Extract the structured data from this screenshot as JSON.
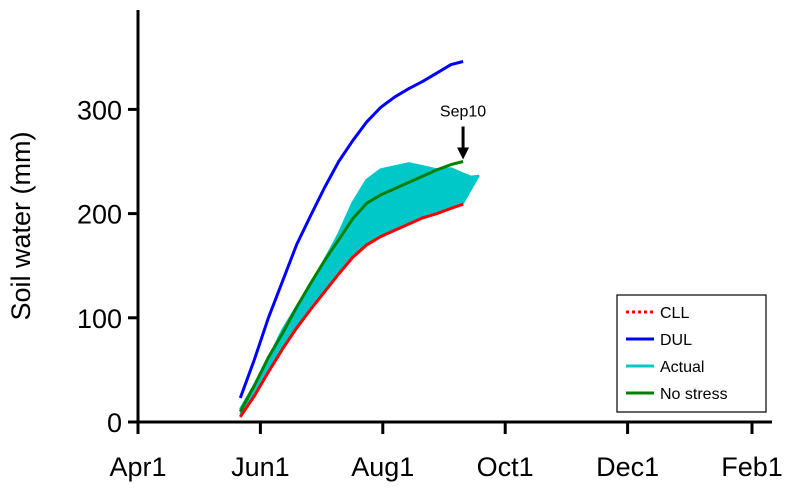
{
  "chart_data": {
    "type": "line",
    "title": "",
    "xlabel": "",
    "ylabel": "Soil water (mm)",
    "x_ticks": [
      "Apr1",
      "Jun1",
      "Aug1",
      "Oct1",
      "Dec1",
      "Feb1"
    ],
    "y_ticks": [
      0,
      100,
      200,
      300
    ],
    "xlim": [
      "Apr1",
      "Feb1"
    ],
    "ylim": [
      0,
      395
    ],
    "grid": false,
    "legend_position": "bottom-right",
    "annotation": {
      "text": "Sep10",
      "x": "Sep10",
      "y": 250
    },
    "series": [
      {
        "name": "CLL",
        "color": "#ff0000",
        "style": "dotted",
        "x": [
          "May22",
          "May29",
          "Jun5",
          "Jun12",
          "Jun19",
          "Jun26",
          "Jul3",
          "Jul10",
          "Jul17",
          "Jul24",
          "Jul31",
          "Aug7",
          "Aug14",
          "Aug21",
          "Aug28",
          "Sep4",
          "Sep10"
        ],
        "y": [
          5,
          25,
          48,
          70,
          90,
          108,
          125,
          142,
          158,
          170,
          178,
          184,
          190,
          196,
          200,
          205,
          209
        ]
      },
      {
        "name": "DUL",
        "color": "#0000ff",
        "style": "solid",
        "x": [
          "May22",
          "May29",
          "Jun5",
          "Jun12",
          "Jun19",
          "Jun26",
          "Jul3",
          "Jul10",
          "Jul17",
          "Jul24",
          "Jul31",
          "Aug7",
          "Aug14",
          "Aug21",
          "Aug28",
          "Sep4",
          "Sep10"
        ],
        "y": [
          23,
          60,
          100,
          135,
          170,
          198,
          225,
          250,
          270,
          288,
          302,
          312,
          320,
          327,
          335,
          343,
          346
        ]
      },
      {
        "name": "Actual",
        "color": "#00c8c8",
        "style": "area",
        "x": [
          "May22",
          "May29",
          "Jun5",
          "Jun12",
          "Jun19",
          "Jun26",
          "Jul3",
          "Jul10",
          "Jul17",
          "Jul24",
          "Jul31",
          "Aug7",
          "Aug14",
          "Aug21",
          "Aug28",
          "Sep4",
          "Sep10",
          "Sep14",
          "Sep18"
        ],
        "y": [
          12,
          35,
          60,
          88,
          110,
          130,
          155,
          180,
          210,
          232,
          242,
          245,
          248,
          245,
          242,
          243,
          238,
          235,
          236
        ]
      },
      {
        "name": "No stress",
        "color": "#008000",
        "style": "solid",
        "x": [
          "May22",
          "May29",
          "Jun5",
          "Jun12",
          "Jun19",
          "Jun26",
          "Jul3",
          "Jul10",
          "Jul17",
          "Jul24",
          "Jul31",
          "Aug7",
          "Aug14",
          "Aug21",
          "Aug28",
          "Sep4",
          "Sep10"
        ],
        "y": [
          10,
          35,
          62,
          85,
          110,
          133,
          155,
          175,
          195,
          210,
          218,
          224,
          230,
          236,
          242,
          247,
          250
        ]
      }
    ]
  }
}
